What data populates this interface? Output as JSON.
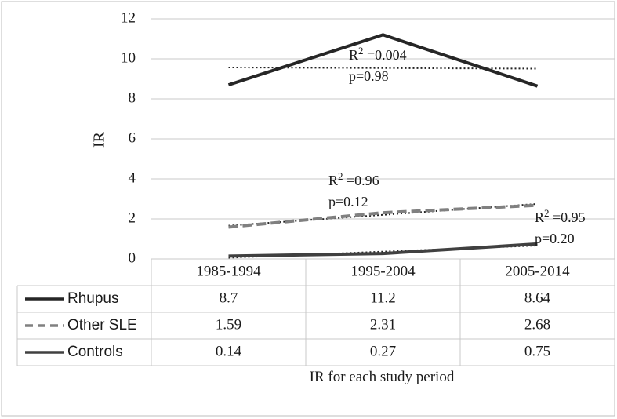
{
  "chart_data": {
    "type": "line",
    "title": "",
    "xlabel": "IR for each study period",
    "ylabel": "IR",
    "categories": [
      "1985-1994",
      "1995-2004",
      "2005-2014"
    ],
    "ylim": [
      0,
      12
    ],
    "yticks": [
      0,
      2,
      4,
      6,
      8,
      10,
      12
    ],
    "grid": true,
    "legend": "data-table-below",
    "series": [
      {
        "name": "Rhupus",
        "values": [
          8.7,
          11.2,
          8.64
        ],
        "labels": [
          "8.7",
          "11.2",
          "8.64"
        ],
        "style": "solid",
        "color": "#262626",
        "trend": {
          "values": [
            9.57,
            9.51
          ],
          "r2_label": "R",
          "r2_sup": "2",
          "r2_value": " =0.004",
          "p_label": "p=0.98",
          "style": "dotted"
        }
      },
      {
        "name": "Other SLE",
        "values": [
          1.59,
          2.31,
          2.68
        ],
        "labels": [
          "1.59",
          "2.31",
          "2.68"
        ],
        "style": "dashed",
        "color": "#808080",
        "trend": {
          "values": [
            1.66,
            2.75
          ],
          "r2_label": "R",
          "r2_sup": "2",
          "r2_value": " =0.96",
          "p_label": "p=0.12",
          "style": "dotted"
        }
      },
      {
        "name": "Controls",
        "values": [
          0.14,
          0.27,
          0.75
        ],
        "labels": [
          "0.14",
          "0.27",
          "0.75"
        ],
        "style": "solid",
        "color": "#404040",
        "trend": {
          "values": [
            0.06,
            0.67
          ],
          "r2_label": "R",
          "r2_sup": "2",
          "r2_value": " =0.95",
          "p_label": "p=0.20",
          "style": "dotted"
        }
      }
    ]
  }
}
